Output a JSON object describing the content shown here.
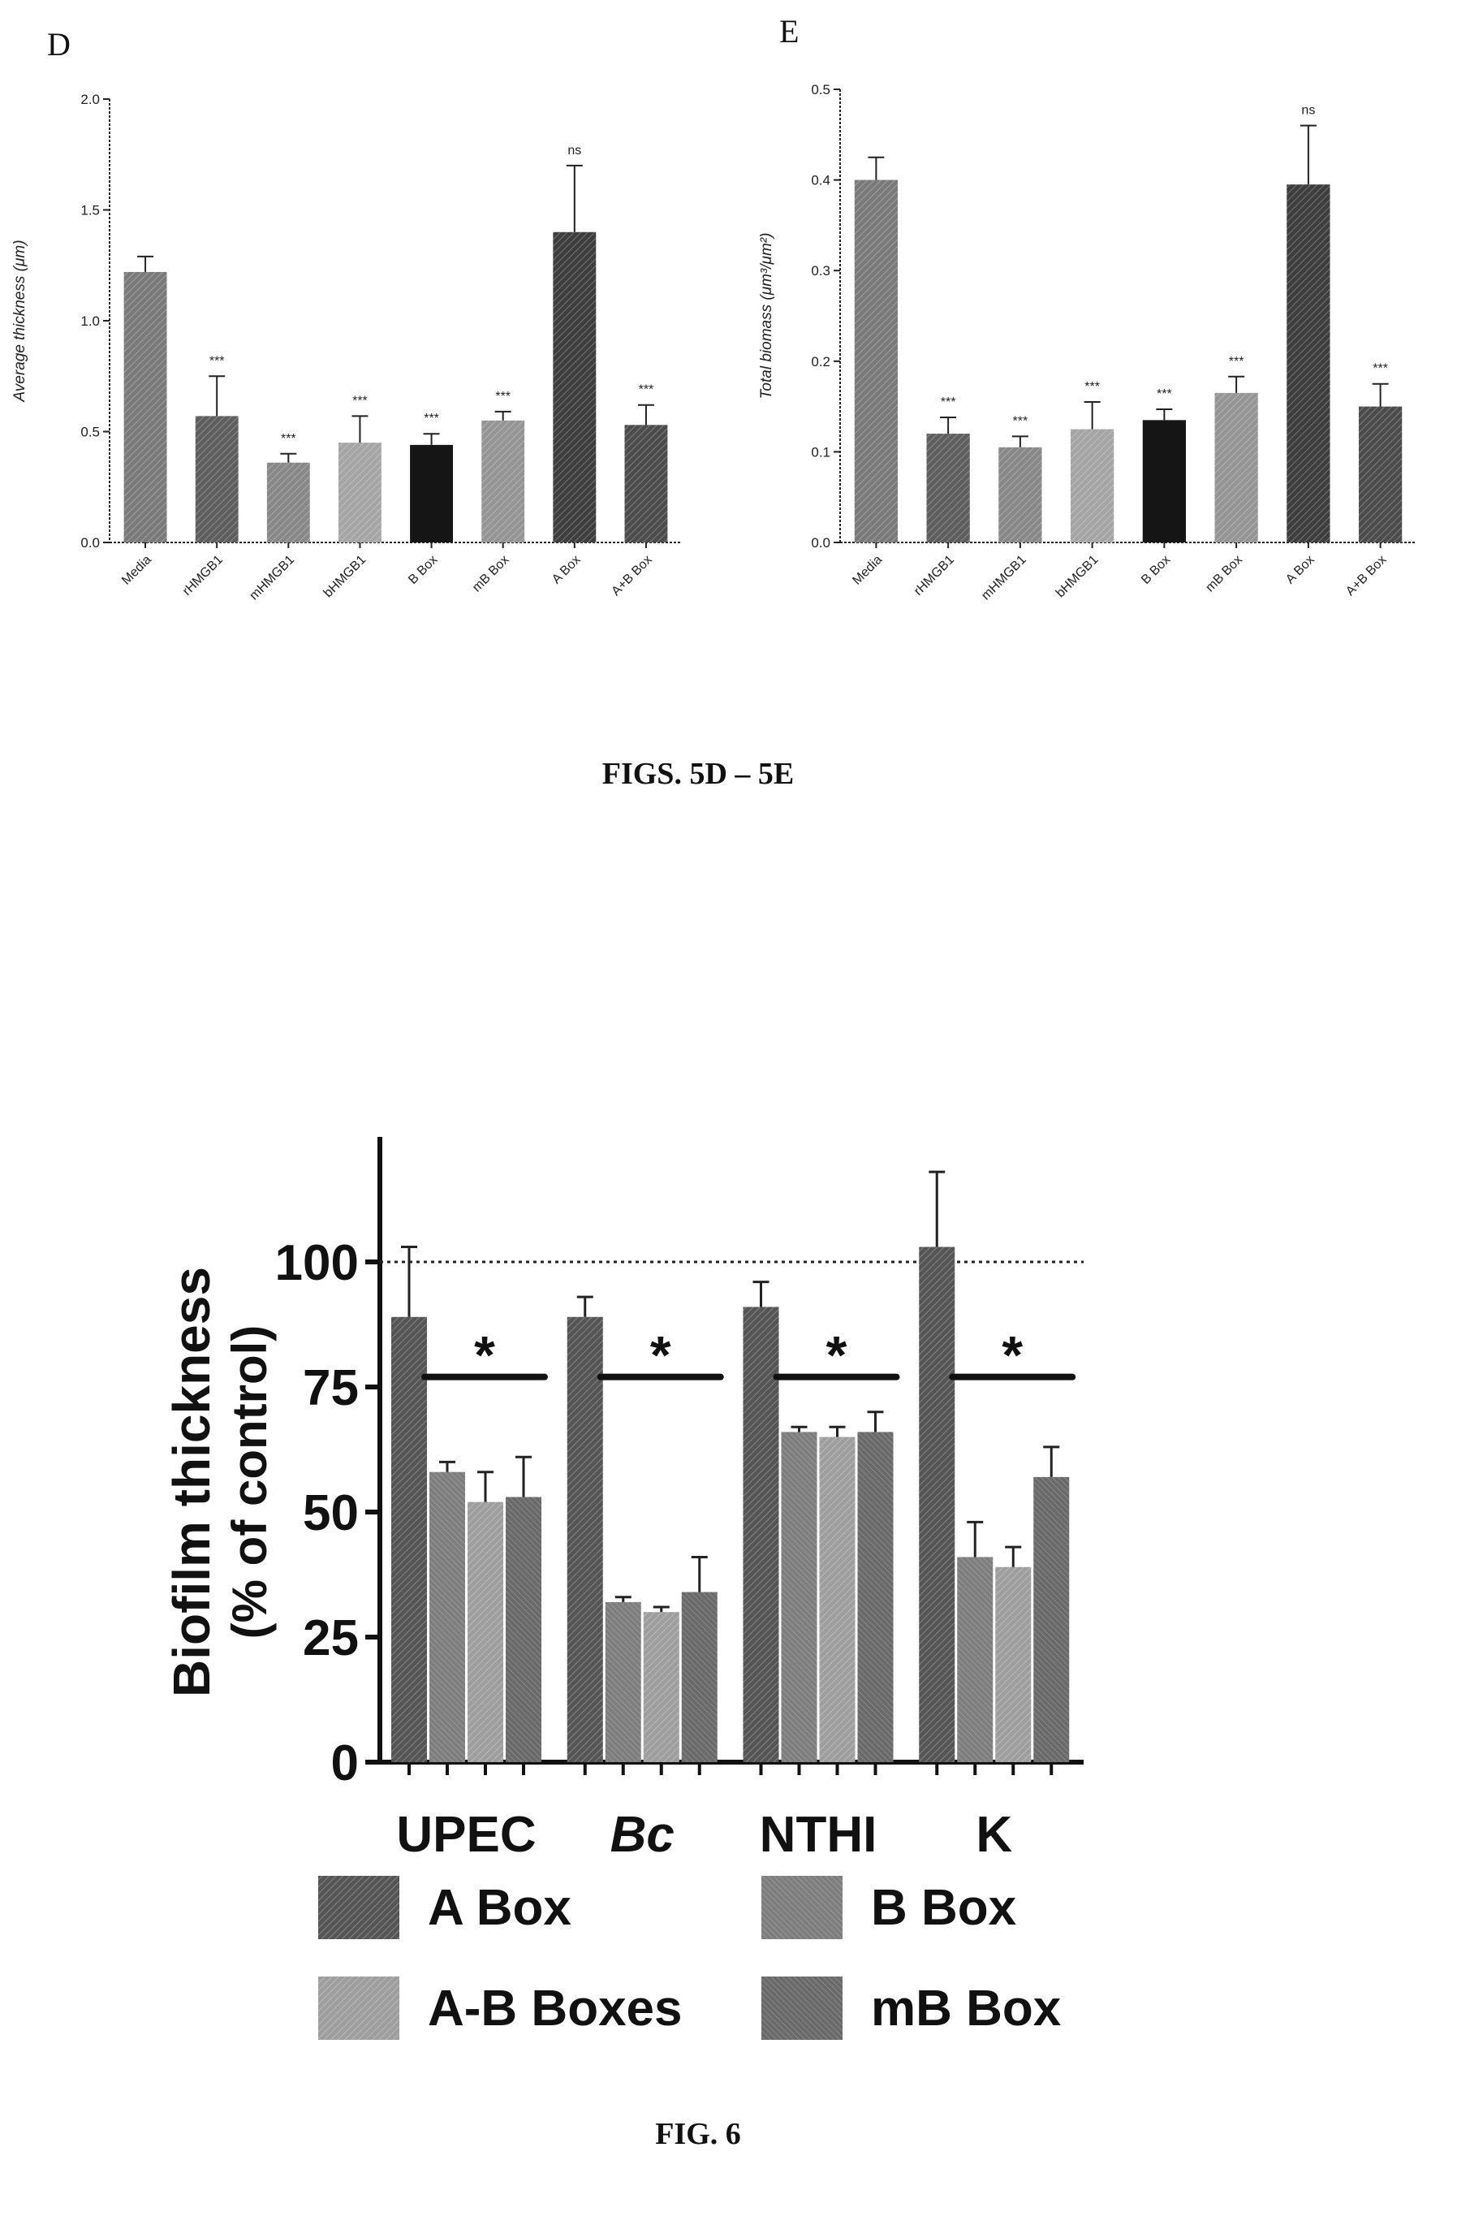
{
  "panels": {
    "d_letter": "D",
    "e_letter": "E"
  },
  "captions": {
    "fig5": "FIGS. 5D – 5E",
    "fig6": "FIG. 6"
  },
  "chart_data": [
    {
      "id": "5D",
      "type": "bar",
      "ylabel": "Average thickness (μm)",
      "ylim": [
        0,
        2.0
      ],
      "yticks": [
        "0.0",
        "0.5",
        "1.0",
        "1.5",
        "2.0"
      ],
      "yticks_values": [
        0,
        0.5,
        1.0,
        1.5,
        2.0
      ],
      "categories": [
        "Media",
        "rHMGB1",
        "mHMGB1",
        "bHMGB1",
        "B Box",
        "mB Box",
        "A Box",
        "A+B Box"
      ],
      "values": [
        1.22,
        0.57,
        0.36,
        0.45,
        0.44,
        0.55,
        1.4,
        0.53
      ],
      "errors": [
        0.07,
        0.18,
        0.04,
        0.12,
        0.05,
        0.04,
        0.3,
        0.09
      ],
      "annotations": [
        "",
        "***",
        "***",
        "***",
        "***",
        "***",
        "ns",
        "***"
      ],
      "colors": [
        "#7a7a7a",
        "#5e5e5e",
        "#888888",
        "#a5a5a5",
        "#151515",
        "#959595",
        "#3e3e3e",
        "#4c4c4c"
      ]
    },
    {
      "id": "5E",
      "type": "bar",
      "ylabel": "Total biomass (μm³/μm²)",
      "ylim": [
        0,
        0.5
      ],
      "yticks": [
        "0.0",
        "0.1",
        "0.2",
        "0.3",
        "0.4",
        "0.5"
      ],
      "yticks_values": [
        0,
        0.1,
        0.2,
        0.3,
        0.4,
        0.5
      ],
      "categories": [
        "Media",
        "rHMGB1",
        "mHMGB1",
        "bHMGB1",
        "B Box",
        "mB Box",
        "A Box",
        "A+B Box"
      ],
      "values": [
        0.4,
        0.12,
        0.105,
        0.125,
        0.135,
        0.165,
        0.395,
        0.15
      ],
      "errors": [
        0.025,
        0.018,
        0.012,
        0.03,
        0.012,
        0.018,
        0.065,
        0.025
      ],
      "annotations": [
        "",
        "***",
        "***",
        "***",
        "***",
        "***",
        "ns",
        "***"
      ],
      "colors": [
        "#7a7a7a",
        "#5e5e5e",
        "#888888",
        "#a5a5a5",
        "#151515",
        "#959595",
        "#3e3e3e",
        "#4c4c4c"
      ]
    },
    {
      "id": "6",
      "type": "bar",
      "ylabel_line1": "Biofilm thickness",
      "ylabel_line2": "(% of control)",
      "ylim": [
        0,
        125
      ],
      "yticks": [
        "0",
        "25",
        "50",
        "75",
        "100"
      ],
      "yticks_values": [
        0,
        25,
        50,
        75,
        100
      ],
      "reference_line": 100,
      "categories": [
        "UPEC",
        "Bc",
        "NTHI",
        "K"
      ],
      "category_italic": [
        false,
        true,
        false,
        false
      ],
      "series": [
        {
          "name": "A Box",
          "values": [
            89,
            89,
            91,
            103
          ],
          "errors": [
            14,
            4,
            5,
            15
          ],
          "color": "#555555"
        },
        {
          "name": "B Box",
          "values": [
            58,
            32,
            66,
            41
          ],
          "errors": [
            2,
            1,
            1,
            7
          ],
          "color": "#7e7e7e"
        },
        {
          "name": "A-B Boxes",
          "values": [
            52,
            30,
            65,
            39
          ],
          "errors": [
            6,
            1,
            2,
            4
          ],
          "color": "#9e9e9e"
        },
        {
          "name": "mB Box",
          "values": [
            53,
            34,
            66,
            57
          ],
          "errors": [
            8,
            7,
            4,
            6
          ],
          "color": "#6a6a6a"
        }
      ],
      "significance": [
        "*",
        "*",
        "*",
        "*"
      ],
      "legend": {
        "position": "bottom"
      }
    }
  ]
}
